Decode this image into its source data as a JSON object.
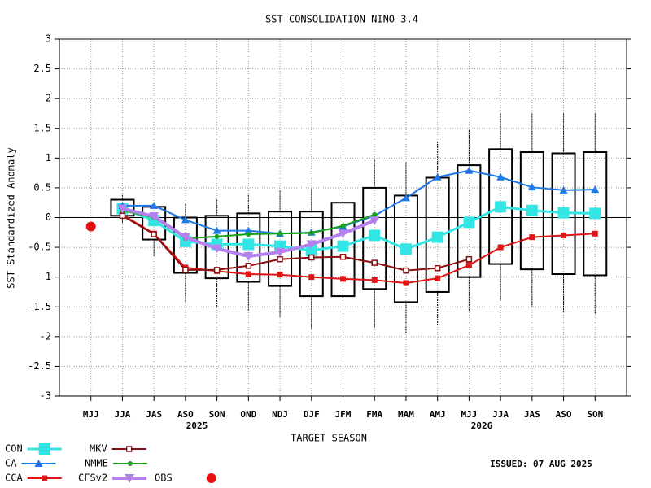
{
  "chart_data": {
    "type": "box_line",
    "title": "SST CONSOLIDATION NINO 3.4",
    "y_label": "SST Standardized Anomaly",
    "x_label": "TARGET SEASON",
    "issued": "ISSUED: 07 AUG 2025",
    "years": [
      "2025",
      "2026"
    ],
    "categories": [
      "MJJ",
      "JJA",
      "JAS",
      "ASO",
      "SON",
      "OND",
      "NDJ",
      "DJF",
      "JFM",
      "FMA",
      "MAM",
      "AMJ",
      "MJJ",
      "JJA",
      "JAS",
      "ASO",
      "SON"
    ],
    "ylim": [
      -3,
      3
    ],
    "yticks": [
      -3,
      -2.5,
      -2,
      -1.5,
      -1,
      -0.5,
      0,
      0.5,
      1,
      1.5,
      2,
      2.5,
      3
    ],
    "grid": true,
    "boxes": {
      "high": [
        null,
        0.38,
        0.25,
        0.23,
        0.3,
        0.38,
        0.45,
        0.48,
        0.67,
        0.97,
        0.93,
        1.28,
        1.47,
        1.75,
        1.75,
        1.75,
        1.75
      ],
      "upper": [
        null,
        0.3,
        0.18,
        0.0,
        0.03,
        0.07,
        0.1,
        0.1,
        0.25,
        0.5,
        0.37,
        0.67,
        0.88,
        1.15,
        1.1,
        1.08,
        1.1
      ],
      "lower": [
        null,
        0.03,
        -0.37,
        -0.93,
        -1.02,
        -1.08,
        -1.15,
        -1.32,
        -1.32,
        -1.2,
        -1.42,
        -1.25,
        -1.0,
        -0.78,
        -0.87,
        -0.95,
        -0.97
      ],
      "low": [
        null,
        -0.1,
        -0.65,
        -1.43,
        -1.5,
        -1.57,
        -1.67,
        -1.88,
        -1.93,
        -1.85,
        -1.95,
        -1.8,
        -1.58,
        -1.4,
        -1.5,
        -1.6,
        -1.62
      ]
    },
    "series": [
      {
        "name": "CON",
        "color": "#33e6e6",
        "marker": "bigsquare",
        "values": [
          null,
          0.15,
          -0.05,
          -0.4,
          -0.45,
          -0.45,
          -0.48,
          -0.55,
          -0.48,
          -0.3,
          -0.53,
          -0.33,
          -0.08,
          0.18,
          0.12,
          0.08,
          0.07
        ]
      },
      {
        "name": "CA",
        "color": "#1e78e6",
        "marker": "triangle",
        "values": [
          null,
          0.2,
          0.2,
          -0.04,
          -0.22,
          -0.22,
          -0.27,
          -0.25,
          -0.15,
          0.03,
          0.33,
          0.68,
          0.79,
          0.68,
          0.51,
          0.46,
          0.47
        ]
      },
      {
        "name": "CCA",
        "color": "#e01414",
        "marker": "square",
        "values": [
          null,
          0.05,
          -0.27,
          -0.84,
          -0.9,
          -0.95,
          -0.96,
          -1.0,
          -1.03,
          -1.05,
          -1.1,
          -1.02,
          -0.8,
          -0.5,
          -0.33,
          -0.3,
          -0.27
        ]
      },
      {
        "name": "MKV",
        "color": "#8b1010",
        "marker": "opensquare",
        "values": [
          null,
          0.03,
          -0.28,
          -0.88,
          -0.88,
          -0.81,
          -0.7,
          -0.67,
          -0.66,
          -0.76,
          -0.89,
          -0.85,
          -0.7,
          null,
          null,
          null,
          null
        ]
      },
      {
        "name": "NMME",
        "color": "#18a018",
        "marker": "dot",
        "values": [
          null,
          0.12,
          0.0,
          -0.35,
          -0.32,
          -0.28,
          -0.27,
          -0.26,
          -0.14,
          0.05,
          null,
          null,
          null,
          null,
          null,
          null,
          null
        ]
      },
      {
        "name": "CFSv2",
        "color": "#b482ee",
        "marker": "downtriangle",
        "values": [
          null,
          0.15,
          0.02,
          -0.33,
          -0.52,
          -0.65,
          -0.58,
          -0.45,
          -0.27,
          -0.05,
          null,
          null,
          null,
          null,
          null,
          null,
          null
        ]
      },
      {
        "name": "OBS",
        "color": "#e81010",
        "marker": "circle",
        "values": [
          -0.15,
          null,
          null,
          null,
          null,
          null,
          null,
          null,
          null,
          null,
          null,
          null,
          null,
          null,
          null,
          null,
          null
        ]
      }
    ]
  }
}
